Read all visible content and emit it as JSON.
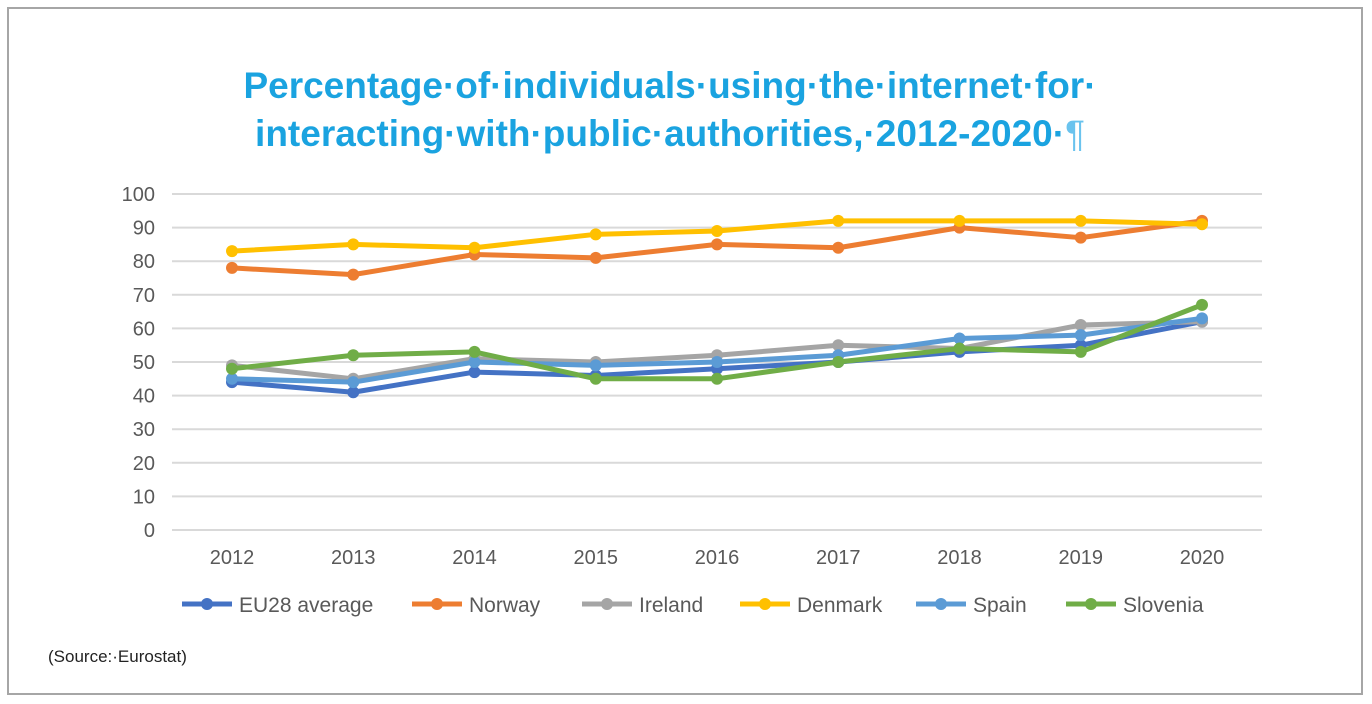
{
  "chart_data": {
    "type": "line",
    "title_line1": "Percentage·of·individuals·using·the·internet·for·",
    "title_line2": "interacting·with·public·authorities,·2012-2020·",
    "pilcrow": "¶",
    "x": [
      "2012",
      "2013",
      "2014",
      "2015",
      "2016",
      "2017",
      "2018",
      "2019",
      "2020"
    ],
    "ylim": [
      0,
      100
    ],
    "yticks": [
      0,
      10,
      20,
      30,
      40,
      50,
      60,
      70,
      80,
      90,
      100
    ],
    "grid": true,
    "legend_position": "bottom",
    "series": [
      {
        "name": "EU28 average",
        "color": "#4472c4",
        "values": [
          44,
          41,
          47,
          46,
          48,
          50,
          53,
          55,
          62
        ]
      },
      {
        "name": "Norway",
        "color": "#ed7d31",
        "values": [
          78,
          76,
          82,
          81,
          85,
          84,
          90,
          87,
          92
        ]
      },
      {
        "name": "Ireland",
        "color": "#a5a5a5",
        "values": [
          49,
          45,
          51,
          50,
          52,
          55,
          54,
          61,
          62
        ]
      },
      {
        "name": "Denmark",
        "color": "#ffc000",
        "values": [
          83,
          85,
          84,
          88,
          89,
          92,
          92,
          92,
          91
        ]
      },
      {
        "name": "Spain",
        "color": "#5b9bd5",
        "values": [
          45,
          44,
          50,
          49,
          50,
          52,
          57,
          58,
          63
        ]
      },
      {
        "name": "Slovenia",
        "color": "#70ad47",
        "values": [
          48,
          52,
          53,
          45,
          45,
          50,
          54,
          53,
          67
        ]
      }
    ]
  },
  "source": "(Source:·Eurostat)"
}
